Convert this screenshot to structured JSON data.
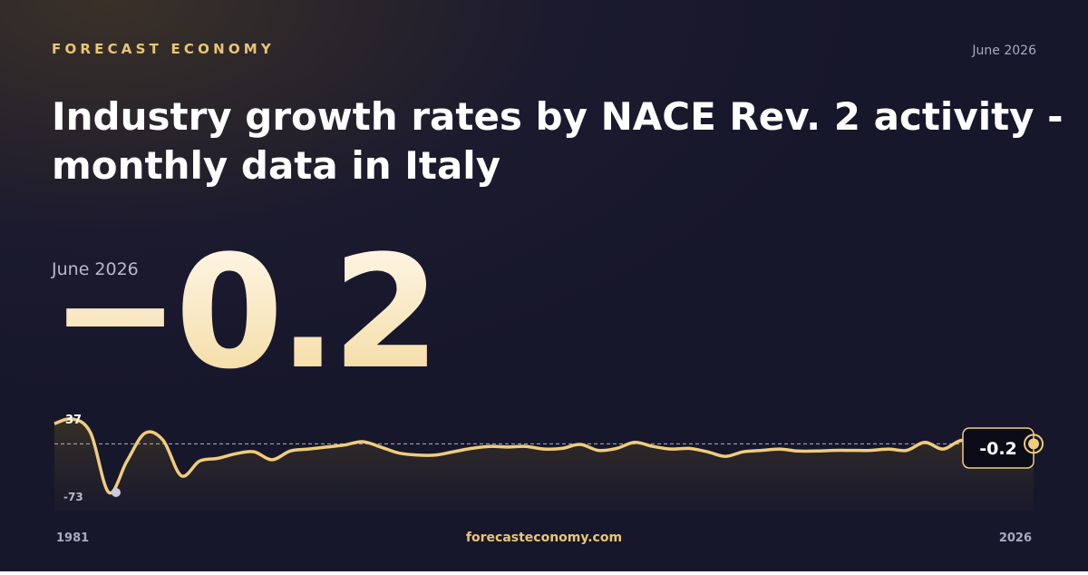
{
  "header": {
    "brand": "FORECAST ECONOMY",
    "date": "June 2026",
    "title_line1": "Industry growth rates by NACE Rev. 2 activity -",
    "title_line2": "monthly data in Italy"
  },
  "headline": {
    "date": "June 2026",
    "value": "−0.2"
  },
  "footer": {
    "site": "forecasteconomy.com"
  },
  "chart_data": {
    "type": "line",
    "color": "#f0cd7c",
    "categories": [
      "1981",
      null,
      null,
      null,
      null,
      null,
      null,
      null,
      null,
      null,
      null,
      null,
      null,
      null,
      null,
      null,
      null,
      null,
      null,
      null,
      null,
      null,
      null,
      null,
      null,
      null,
      null,
      null,
      null,
      null,
      null,
      null,
      null,
      null,
      null,
      null,
      null,
      null,
      null,
      null,
      null,
      null,
      null,
      null,
      null,
      null,
      null,
      null,
      null,
      null,
      null,
      null,
      null,
      null,
      "2026"
    ],
    "values": [
      30,
      37,
      16,
      -73,
      -26,
      16,
      5,
      -48,
      -26,
      -22,
      -15,
      -12,
      -24,
      -11,
      -8,
      -5,
      -2,
      3,
      -5,
      -14,
      -17,
      -17,
      -12,
      -7,
      -4,
      -5,
      -4,
      -8,
      -7,
      -1,
      -10,
      -7,
      2,
      -4,
      -8,
      -7,
      -12,
      -19,
      -12,
      -10,
      -8,
      -11,
      -11,
      -10,
      -10,
      -10,
      -8,
      -10,
      2,
      -8,
      5,
      2,
      -2,
      -4,
      -0.2
    ]
  }
}
